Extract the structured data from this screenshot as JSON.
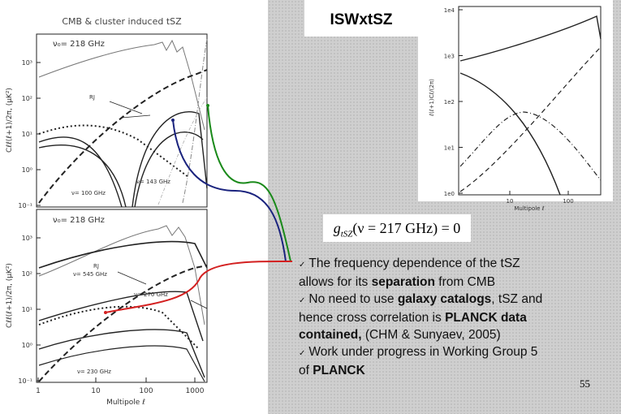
{
  "title": "ISWxtSZ",
  "slide_number": "55",
  "equation": {
    "symbol": "g",
    "subscript": "tSZ",
    "rest": "(ν = 217 GHz) = 0"
  },
  "text_lines": [
    [
      {
        "text": "✓",
        "check": true
      },
      {
        "text": "The frequency dependence of the tSZ"
      }
    ],
    [
      {
        "text": "allows for its "
      },
      {
        "text": "separation",
        "bold": true
      },
      {
        "text": " from CMB"
      }
    ],
    [
      {
        "text": "✓",
        "check": true
      },
      {
        "text": "No need to use "
      },
      {
        "text": "galaxy catalogs",
        "bold": true
      },
      {
        "text": ", tSZ and"
      }
    ],
    [
      {
        "text": "hence cross correlation is "
      },
      {
        "text": "PLANCK data",
        "bold": true
      }
    ],
    [
      {
        "text": "contained,",
        "bold": true
      },
      {
        "text": " (CHM & Sunyaev, 2005)"
      }
    ],
    [
      {
        "text": "✓",
        "check": true
      },
      {
        "text": "Work under progress in Working Group 5"
      }
    ],
    [
      {
        "text": "of "
      },
      {
        "text": "PLANCK",
        "bold": true
      }
    ]
  ],
  "left_plot": {
    "title": "CMB & cluster induced tSZ",
    "x_label": "Multipole  ℓ",
    "y_label": "Cℓℓ(ℓ+1)/2π, (μK²)",
    "xticks": [
      "1",
      "10",
      "100",
      "1000"
    ],
    "top_panel": {
      "yticks": [
        "10³",
        "10²",
        "10¹",
        "10⁰",
        "10⁻¹"
      ],
      "labels": [
        "ν₀= 218 GHz",
        "RJ",
        "ν= 100 GHz",
        "ν= 143 GHz"
      ]
    },
    "bottom_panel": {
      "yticks": [
        "10³",
        "10²",
        "10¹",
        "10⁰",
        "10⁻¹"
      ],
      "labels": [
        "ν₀= 218 GHz",
        "ν= 545 GHz",
        "RJ",
        "ν= 270 GHz",
        "ν= 230 GHz"
      ]
    }
  },
  "right_plot": {
    "y_label": "ℓ(ℓ+1)Cℓ/(2π)",
    "x_label": "Multipole  ℓ",
    "yticks": [
      "1e4",
      "1e3",
      "1e2",
      "1e1",
      "1e0"
    ],
    "xticks": [
      "10",
      "100"
    ]
  }
}
